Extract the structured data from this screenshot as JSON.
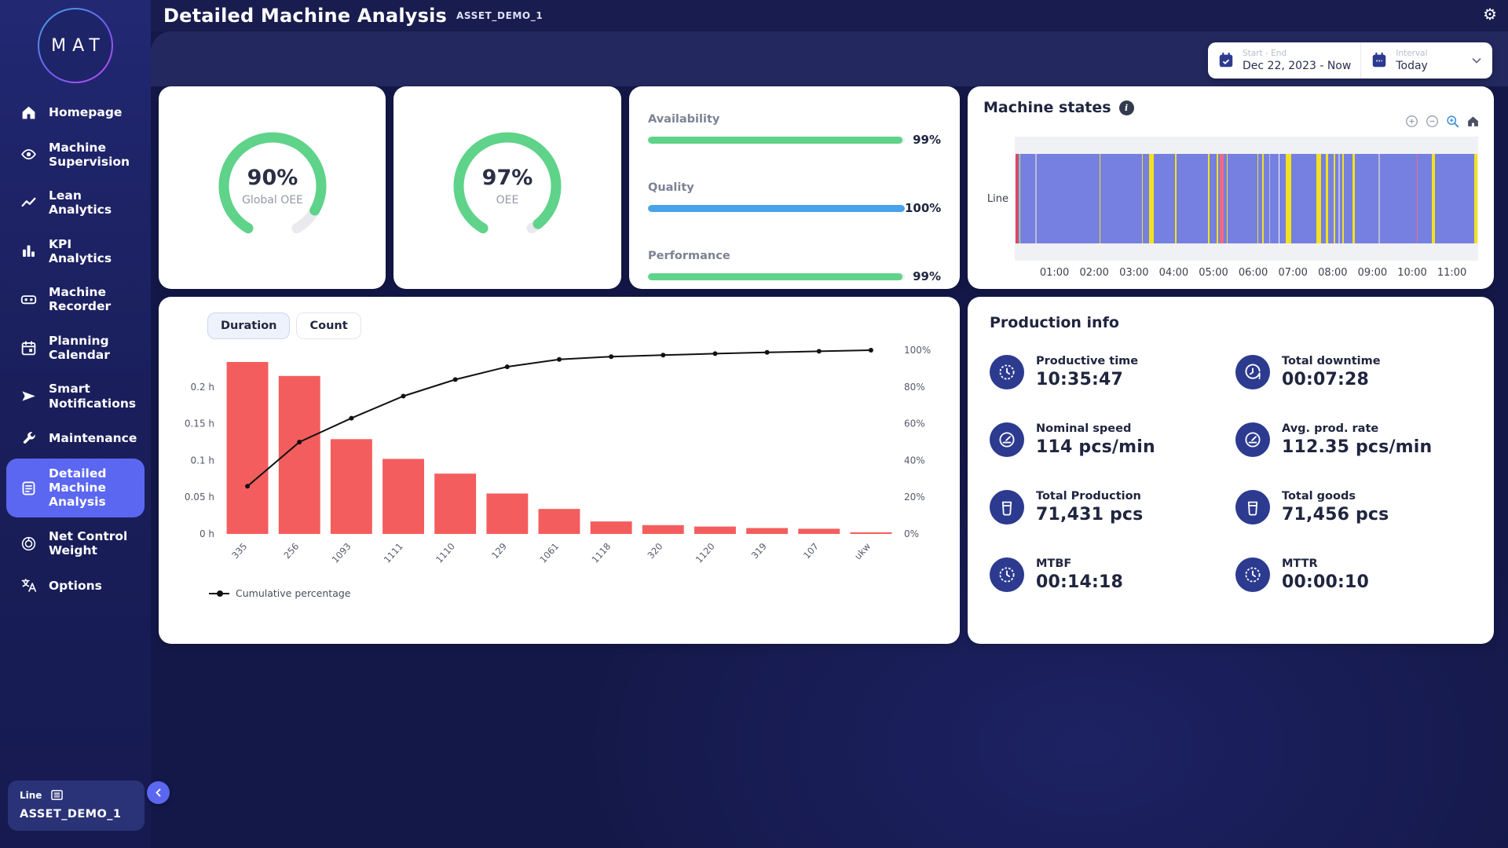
{
  "topbar": {
    "title": "Detailed Machine Analysis",
    "asset": "ASSET_DEMO_1"
  },
  "sidebar": {
    "logo": "MAT",
    "items": [
      {
        "label": "Homepage",
        "icon": "home",
        "active": false
      },
      {
        "label": "Machine Supervision",
        "icon": "eye",
        "active": false
      },
      {
        "label": "Lean Analytics",
        "icon": "trend",
        "active": false
      },
      {
        "label": "KPI Analytics",
        "icon": "bars",
        "active": false
      },
      {
        "label": "Machine Recorder",
        "icon": "recorder",
        "active": false
      },
      {
        "label": "Planning Calendar",
        "icon": "calendar",
        "active": false
      },
      {
        "label": "Smart Notifications",
        "icon": "send",
        "active": false
      },
      {
        "label": "Maintenance",
        "icon": "wrench",
        "active": false
      },
      {
        "label": "Detailed Machine Analysis",
        "icon": "note",
        "active": true
      },
      {
        "label": "Net Control Weight",
        "icon": "weight",
        "active": false
      },
      {
        "label": "Options",
        "icon": "translate",
        "active": false
      }
    ]
  },
  "filters": {
    "start_end_label": "Start - End",
    "start_end_value": "Dec 22, 2023 - Now",
    "interval_label": "Interval",
    "interval_value": "Today"
  },
  "gauges": [
    {
      "value": "90%",
      "pct": 90,
      "label": "Global OEE"
    },
    {
      "value": "97%",
      "pct": 97,
      "label": "OEE"
    }
  ],
  "kpis": [
    {
      "label": "Availability",
      "value": "99%",
      "pct": 99,
      "color": "#5fd389"
    },
    {
      "label": "Quality",
      "value": "100%",
      "pct": 100,
      "color": "#4aa3e8"
    },
    {
      "label": "Performance",
      "value": "99%",
      "pct": 99,
      "color": "#5fd389"
    }
  ],
  "chart_data": [
    {
      "type": "pareto",
      "tabs": [
        "Duration",
        "Count"
      ],
      "active_tab": "Duration",
      "categories": [
        "335",
        "256",
        "1093",
        "1111",
        "1110",
        "129",
        "1061",
        "1118",
        "320",
        "1120",
        "319",
        "107",
        "ukw"
      ],
      "series": [
        {
          "name": "Duration",
          "type": "bar",
          "unit": "h",
          "values": [
            0.234,
            0.215,
            0.129,
            0.102,
            0.082,
            0.055,
            0.034,
            0.017,
            0.012,
            0.01,
            0.008,
            0.007,
            0.002
          ]
        },
        {
          "name": "Cumulative percentage",
          "type": "line",
          "unit": "%",
          "values": [
            26,
            50,
            63,
            75,
            84,
            91,
            95,
            96.5,
            97.3,
            98.1,
            98.8,
            99.4,
            100
          ]
        }
      ],
      "yticks_left": [
        "0 h",
        "0.05 h",
        "0.1 h",
        "0.15 h",
        "0.2 h"
      ],
      "ylim_left": [
        0,
        0.25
      ],
      "yticks_right": [
        "0%",
        "20%",
        "40%",
        "60%",
        "80%",
        "100%"
      ],
      "ylim_right": [
        0,
        100
      ],
      "legend": [
        "Cumulative percentage"
      ],
      "bar_color": "#f45d5d",
      "line_color": "#111111"
    },
    {
      "type": "timeline",
      "title": "Machine states",
      "rows": [
        "Line"
      ],
      "xticks": [
        "01:00",
        "02:00",
        "03:00",
        "04:00",
        "05:00",
        "06:00",
        "07:00",
        "08:00",
        "09:00",
        "10:00",
        "11:00"
      ],
      "total_hours": 11.66,
      "colors": {
        "base": "#7680e0",
        "yellow": "#f3e11f",
        "pink": "#ef6a8a",
        "red": "#e3425f",
        "gray": "#b9bdd4",
        "white": "#fafafa"
      },
      "segments": [
        [
          0,
          0.45,
          "red"
        ],
        [
          0.9,
          0.18,
          "yellow"
        ],
        [
          4.3,
          0.22,
          "gray"
        ],
        [
          18.2,
          0.25,
          "yellow"
        ],
        [
          27.4,
          0.22,
          "yellow"
        ],
        [
          28.9,
          0.95,
          "yellow"
        ],
        [
          34.6,
          0.22,
          "yellow"
        ],
        [
          41.6,
          0.35,
          "yellow"
        ],
        [
          43.5,
          0.3,
          "yellow"
        ],
        [
          44.3,
          0.85,
          "pink"
        ],
        [
          45.7,
          0.25,
          "yellow"
        ],
        [
          52.3,
          0.28,
          "yellow"
        ],
        [
          53.4,
          0.28,
          "yellow"
        ],
        [
          55.0,
          0.18,
          "gray"
        ],
        [
          56.9,
          0.3,
          "white"
        ],
        [
          58.5,
          1.25,
          "yellow"
        ],
        [
          65.2,
          1.0,
          "yellow"
        ],
        [
          67.2,
          0.55,
          "yellow"
        ],
        [
          68.8,
          0.35,
          "yellow"
        ],
        [
          69.9,
          0.3,
          "gray"
        ],
        [
          70.7,
          0.35,
          "yellow"
        ],
        [
          72.9,
          0.6,
          "yellow"
        ],
        [
          78.6,
          0.28,
          "gray"
        ],
        [
          86.9,
          0.25,
          "pink"
        ],
        [
          90.2,
          0.55,
          "yellow"
        ],
        [
          99.3,
          0.7,
          "yellow"
        ]
      ],
      "toolbar": [
        "zoom-in",
        "zoom-out",
        "zoom-box",
        "reset-home"
      ]
    }
  ],
  "production_info": {
    "title": "Production info",
    "stats": [
      {
        "icon": "clock",
        "label": "Productive time",
        "value": "10:35:47"
      },
      {
        "icon": "clock-alert",
        "label": "Total downtime",
        "value": "00:07:28"
      },
      {
        "icon": "speedometer",
        "label": "Nominal speed",
        "value": "114 pcs/min"
      },
      {
        "icon": "speedometer",
        "label": "Avg. prod. rate",
        "value": "112.35 pcs/min"
      },
      {
        "icon": "container",
        "label": "Total Production",
        "value": "71,431 pcs"
      },
      {
        "icon": "container",
        "label": "Total goods",
        "value": "71,456 pcs"
      },
      {
        "icon": "clock",
        "label": "MTBF",
        "value": "00:14:18"
      },
      {
        "icon": "clock",
        "label": "MTTR",
        "value": "00:00:10"
      }
    ]
  },
  "asset_chip": {
    "type": "Line",
    "name": "ASSET_DEMO_1"
  },
  "colors": {
    "accent": "#5b67f0",
    "green": "#5fd389",
    "blue": "#4aa3e8",
    "pareto_red": "#f45d5d",
    "icon_circle": "#2c3a8f",
    "gauge_track": "#e9e9ee"
  }
}
